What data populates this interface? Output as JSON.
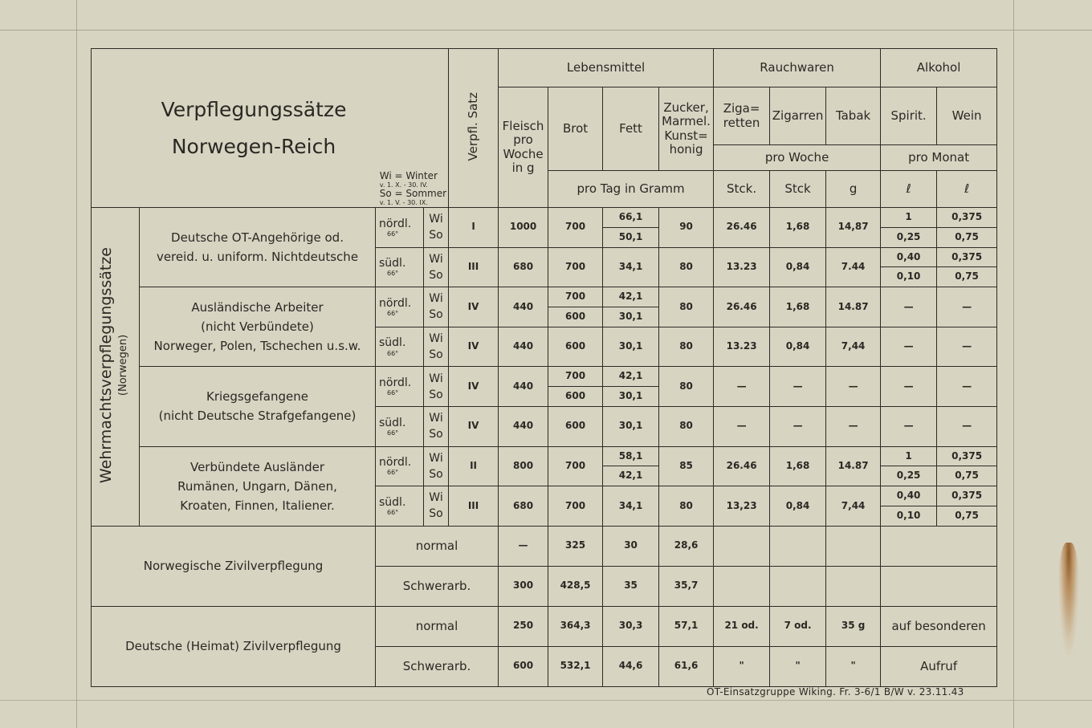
{
  "header": {
    "title_line1": "Verpflegungssätze",
    "title_line2": "Norwegen-Reich",
    "legend": [
      "Wi = Winter",
      "v. 1. X. - 30. IV.",
      "So = Sommer",
      "v. 1. V. - 30. IX."
    ],
    "satz_label": "Verpfl. Satz",
    "groups": [
      "Lebensmittel",
      "Rauchwaren",
      "Alkohol"
    ],
    "columns": [
      "Fleisch pro Woche in g",
      "Brot",
      "Fett",
      "Zucker, Marmel. Kunst= honig",
      "Ziga= retten",
      "Zigarren",
      "Tabak",
      "Spirit.",
      "Wein"
    ],
    "pro_woche": "pro Woche",
    "pro_monat": "pro Monat",
    "pro_tag": "pro Tag   in Gramm",
    "units": [
      "Stck.",
      "Stck",
      "g",
      "ℓ",
      "ℓ"
    ]
  },
  "side_label": "Wehrmachtsverpflegungssätze",
  "side_sublabel": "(Norwegen)",
  "seasons": [
    "Wi",
    "So"
  ],
  "groups": [
    {
      "label": [
        "Deutsche OT-Angehörige od.",
        "vereid. u. uniform. Nichtdeutsche"
      ],
      "rows": [
        {
          "zone": "nördl.",
          "lat": "66°",
          "satz": "I",
          "fleisch": "1000",
          "brot": "700",
          "fett": [
            "66,1",
            "50,1"
          ],
          "zucker": "90",
          "zigaretten": "26.46",
          "zigarren": "1,68",
          "tabak": "14,87",
          "spirit": [
            "1",
            "0,25"
          ],
          "wein": [
            "0,375",
            "0,75"
          ]
        },
        {
          "zone": "südl.",
          "lat": "66°",
          "satz": "III",
          "fleisch": "680",
          "brot": "700",
          "fett": "34,1",
          "zucker": "80",
          "zigaretten": "13.23",
          "zigarren": "0,84",
          "tabak": "7.44",
          "spirit": [
            "0,40",
            "0,10"
          ],
          "wein": [
            "0,375",
            "0,75"
          ]
        }
      ]
    },
    {
      "label": [
        "Ausländische Arbeiter",
        "(nicht Verbündete)",
        "Norweger, Polen, Tschechen u.s.w."
      ],
      "rows": [
        {
          "zone": "nördl.",
          "lat": "66°",
          "satz": "IV",
          "fleisch": "440",
          "brot": [
            "700",
            "600"
          ],
          "fett": [
            "42,1",
            "30,1"
          ],
          "zucker": "80",
          "zigaretten": "26.46",
          "zigarren": "1,68",
          "tabak": "14.87",
          "spirit": "—",
          "wein": "—"
        },
        {
          "zone": "südl.",
          "lat": "66°",
          "satz": "IV",
          "fleisch": "440",
          "brot": "600",
          "fett": "30,1",
          "zucker": "80",
          "zigaretten": "13.23",
          "zigarren": "0,84",
          "tabak": "7,44",
          "spirit": "—",
          "wein": "—"
        }
      ]
    },
    {
      "label": [
        "Kriegsgefangene",
        "(nicht Deutsche Strafgefangene)"
      ],
      "rows": [
        {
          "zone": "nördl.",
          "lat": "66°",
          "satz": "IV",
          "fleisch": "440",
          "brot": [
            "700",
            "600"
          ],
          "fett": [
            "42,1",
            "30,1"
          ],
          "zucker": "80",
          "zigaretten": "—",
          "zigarren": "—",
          "tabak": "—",
          "spirit": "—",
          "wein": "—"
        },
        {
          "zone": "südl.",
          "lat": "66°",
          "satz": "IV",
          "fleisch": "440",
          "brot": "600",
          "fett": "30,1",
          "zucker": "80",
          "zigaretten": "—",
          "zigarren": "—",
          "tabak": "—",
          "spirit": "—",
          "wein": "—"
        }
      ]
    },
    {
      "label": [
        "Verbündete Ausländer",
        "Rumänen, Ungarn, Dänen,",
        "Kroaten, Finnen, Italiener."
      ],
      "rows": [
        {
          "zone": "nördl.",
          "lat": "66°",
          "satz": "II",
          "fleisch": "800",
          "brot": "700",
          "fett": [
            "58,1",
            "42,1"
          ],
          "zucker": "85",
          "zigaretten": "26.46",
          "zigarren": "1,68",
          "tabak": "14.87",
          "spirit": [
            "1",
            "0,25"
          ],
          "wein": [
            "0,375",
            "0,75"
          ]
        },
        {
          "zone": "südl.",
          "lat": "66°",
          "satz": "III",
          "fleisch": "680",
          "brot": "700",
          "fett": "34,1",
          "zucker": "80",
          "zigaretten": "13,23",
          "zigarren": "0,84",
          "tabak": "7,44",
          "spirit": [
            "0,40",
            "0,10"
          ],
          "wein": [
            "0,375",
            "0,75"
          ]
        }
      ]
    }
  ],
  "civil": [
    {
      "label": "Norwegische Zivilverpflegung",
      "rows": [
        {
          "kind": "normal",
          "fleisch": "—",
          "brot": "325",
          "fett": "30",
          "zucker": "28,6",
          "zigaretten": "",
          "zigarren": "",
          "tabak": "",
          "alkohol": ""
        },
        {
          "kind": "Schwerarb.",
          "fleisch": "300",
          "brot": "428,5",
          "fett": "35",
          "zucker": "35,7",
          "zigaretten": "",
          "zigarren": "",
          "tabak": "",
          "alkohol": ""
        }
      ]
    },
    {
      "label": "Deutsche (Heimat) Zivilverpflegung",
      "rows": [
        {
          "kind": "normal",
          "fleisch": "250",
          "brot": "364,3",
          "fett": "30,3",
          "zucker": "57,1",
          "zigaretten": "21 od.",
          "zigarren": "7 od.",
          "tabak": "35 g",
          "alkohol": "auf besonderen"
        },
        {
          "kind": "Schwerarb.",
          "fleisch": "600",
          "brot": "532,1",
          "fett": "44,6",
          "zucker": "61,6",
          "zigaretten": "\"",
          "zigarren": "\"",
          "tabak": "\"",
          "alkohol": "Aufruf"
        }
      ]
    }
  ],
  "footer": "OT-Einsatzgruppe Wiking.   Fr. 3-6/1 B/W v. 23.11.43"
}
